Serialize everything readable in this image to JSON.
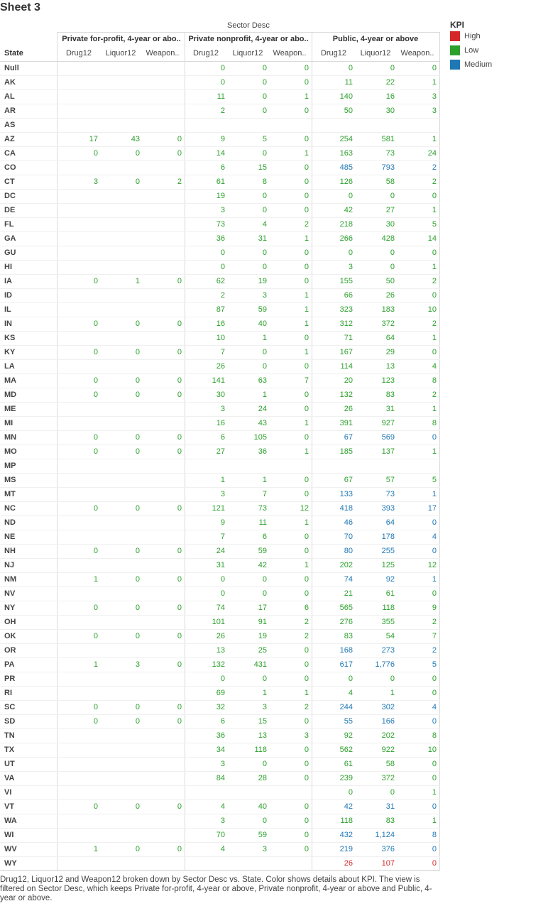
{
  "title": "Sheet 3",
  "sector_desc_label": "Sector Desc",
  "state_label": "State",
  "sectors": [
    "Private for-profit, 4-year or abo..",
    "Private nonprofit, 4-year or abo..",
    "Public, 4-year or above"
  ],
  "measures": [
    "Drug12",
    "Liquor12",
    "Weapon.."
  ],
  "legend": {
    "title": "KPI",
    "items": [
      {
        "label": "High",
        "color": "#d62728"
      },
      {
        "label": "Low",
        "color": "#2ca02c"
      },
      {
        "label": "Medium",
        "color": "#1f77b4"
      }
    ]
  },
  "kpi_colors": {
    "H": "#d62728",
    "L": "#2ca02c",
    "M": "#1f77b4"
  },
  "rows": [
    {
      "state": "Null",
      "s1": null,
      "s2": [
        "0",
        "0",
        "0",
        "L"
      ],
      "s3": [
        "0",
        "0",
        "0",
        "L"
      ]
    },
    {
      "state": "AK",
      "s1": null,
      "s2": [
        "0",
        "0",
        "0",
        "L"
      ],
      "s3": [
        "11",
        "22",
        "1",
        "L"
      ]
    },
    {
      "state": "AL",
      "s1": null,
      "s2": [
        "11",
        "0",
        "1",
        "L"
      ],
      "s3": [
        "140",
        "16",
        "3",
        "L"
      ]
    },
    {
      "state": "AR",
      "s1": null,
      "s2": [
        "2",
        "0",
        "0",
        "L"
      ],
      "s3": [
        "50",
        "30",
        "3",
        "L"
      ]
    },
    {
      "state": "AS",
      "s1": null,
      "s2": null,
      "s3": null
    },
    {
      "state": "AZ",
      "s1": [
        "17",
        "43",
        "0",
        "L"
      ],
      "s2": [
        "9",
        "5",
        "0",
        "L"
      ],
      "s3": [
        "254",
        "581",
        "1",
        "L"
      ]
    },
    {
      "state": "CA",
      "s1": [
        "0",
        "0",
        "0",
        "L"
      ],
      "s2": [
        "14",
        "0",
        "1",
        "L"
      ],
      "s3": [
        "163",
        "73",
        "24",
        "L"
      ]
    },
    {
      "state": "CO",
      "s1": null,
      "s2": [
        "6",
        "15",
        "0",
        "L"
      ],
      "s3": [
        "485",
        "793",
        "2",
        "M"
      ]
    },
    {
      "state": "CT",
      "s1": [
        "3",
        "0",
        "2",
        "L"
      ],
      "s2": [
        "61",
        "8",
        "0",
        "L"
      ],
      "s3": [
        "126",
        "58",
        "2",
        "L"
      ]
    },
    {
      "state": "DC",
      "s1": null,
      "s2": [
        "19",
        "0",
        "0",
        "L"
      ],
      "s3": [
        "0",
        "0",
        "0",
        "L"
      ]
    },
    {
      "state": "DE",
      "s1": null,
      "s2": [
        "3",
        "0",
        "0",
        "L"
      ],
      "s3": [
        "42",
        "27",
        "1",
        "L"
      ]
    },
    {
      "state": "FL",
      "s1": null,
      "s2": [
        "73",
        "4",
        "2",
        "L"
      ],
      "s3": [
        "218",
        "30",
        "5",
        "L"
      ]
    },
    {
      "state": "GA",
      "s1": null,
      "s2": [
        "36",
        "31",
        "1",
        "L"
      ],
      "s3": [
        "266",
        "428",
        "14",
        "L"
      ]
    },
    {
      "state": "GU",
      "s1": null,
      "s2": [
        "0",
        "0",
        "0",
        "L"
      ],
      "s3": [
        "0",
        "0",
        "0",
        "L"
      ]
    },
    {
      "state": "HI",
      "s1": null,
      "s2": [
        "0",
        "0",
        "0",
        "L"
      ],
      "s3": [
        "3",
        "0",
        "1",
        "L"
      ]
    },
    {
      "state": "IA",
      "s1": [
        "0",
        "1",
        "0",
        "L"
      ],
      "s2": [
        "62",
        "19",
        "0",
        "L"
      ],
      "s3": [
        "155",
        "50",
        "2",
        "L"
      ]
    },
    {
      "state": "ID",
      "s1": null,
      "s2": [
        "2",
        "3",
        "1",
        "L"
      ],
      "s3": [
        "66",
        "26",
        "0",
        "L"
      ]
    },
    {
      "state": "IL",
      "s1": null,
      "s2": [
        "87",
        "59",
        "1",
        "L"
      ],
      "s3": [
        "323",
        "183",
        "10",
        "L"
      ]
    },
    {
      "state": "IN",
      "s1": [
        "0",
        "0",
        "0",
        "L"
      ],
      "s2": [
        "16",
        "40",
        "1",
        "L"
      ],
      "s3": [
        "312",
        "372",
        "2",
        "L"
      ]
    },
    {
      "state": "KS",
      "s1": null,
      "s2": [
        "10",
        "1",
        "0",
        "L"
      ],
      "s3": [
        "71",
        "64",
        "1",
        "L"
      ]
    },
    {
      "state": "KY",
      "s1": [
        "0",
        "0",
        "0",
        "L"
      ],
      "s2": [
        "7",
        "0",
        "1",
        "L"
      ],
      "s3": [
        "167",
        "29",
        "0",
        "L"
      ]
    },
    {
      "state": "LA",
      "s1": null,
      "s2": [
        "26",
        "0",
        "0",
        "L"
      ],
      "s3": [
        "114",
        "13",
        "4",
        "L"
      ]
    },
    {
      "state": "MA",
      "s1": [
        "0",
        "0",
        "0",
        "L"
      ],
      "s2": [
        "141",
        "63",
        "7",
        "L"
      ],
      "s3": [
        "20",
        "123",
        "8",
        "L"
      ]
    },
    {
      "state": "MD",
      "s1": [
        "0",
        "0",
        "0",
        "L"
      ],
      "s2": [
        "30",
        "1",
        "0",
        "L"
      ],
      "s3": [
        "132",
        "83",
        "2",
        "L"
      ]
    },
    {
      "state": "ME",
      "s1": null,
      "s2": [
        "3",
        "24",
        "0",
        "L"
      ],
      "s3": [
        "26",
        "31",
        "1",
        "L"
      ]
    },
    {
      "state": "MI",
      "s1": null,
      "s2": [
        "16",
        "43",
        "1",
        "L"
      ],
      "s3": [
        "391",
        "927",
        "8",
        "L"
      ]
    },
    {
      "state": "MN",
      "s1": [
        "0",
        "0",
        "0",
        "L"
      ],
      "s2": [
        "6",
        "105",
        "0",
        "L"
      ],
      "s3": [
        "67",
        "569",
        "0",
        "M"
      ]
    },
    {
      "state": "MO",
      "s1": [
        "0",
        "0",
        "0",
        "L"
      ],
      "s2": [
        "27",
        "36",
        "1",
        "L"
      ],
      "s3": [
        "185",
        "137",
        "1",
        "L"
      ]
    },
    {
      "state": "MP",
      "s1": null,
      "s2": null,
      "s3": null
    },
    {
      "state": "MS",
      "s1": null,
      "s2": [
        "1",
        "1",
        "0",
        "L"
      ],
      "s3": [
        "67",
        "57",
        "5",
        "L"
      ]
    },
    {
      "state": "MT",
      "s1": null,
      "s2": [
        "3",
        "7",
        "0",
        "L"
      ],
      "s3": [
        "133",
        "73",
        "1",
        "M"
      ]
    },
    {
      "state": "NC",
      "s1": [
        "0",
        "0",
        "0",
        "L"
      ],
      "s2": [
        "121",
        "73",
        "12",
        "L"
      ],
      "s3": [
        "418",
        "393",
        "17",
        "M"
      ]
    },
    {
      "state": "ND",
      "s1": null,
      "s2": [
        "9",
        "11",
        "1",
        "L"
      ],
      "s3": [
        "46",
        "64",
        "0",
        "M"
      ]
    },
    {
      "state": "NE",
      "s1": null,
      "s2": [
        "7",
        "6",
        "0",
        "L"
      ],
      "s3": [
        "70",
        "178",
        "4",
        "M"
      ]
    },
    {
      "state": "NH",
      "s1": [
        "0",
        "0",
        "0",
        "L"
      ],
      "s2": [
        "24",
        "59",
        "0",
        "L"
      ],
      "s3": [
        "80",
        "255",
        "0",
        "M"
      ]
    },
    {
      "state": "NJ",
      "s1": null,
      "s2": [
        "31",
        "42",
        "1",
        "L"
      ],
      "s3": [
        "202",
        "125",
        "12",
        "L"
      ]
    },
    {
      "state": "NM",
      "s1": [
        "1",
        "0",
        "0",
        "L"
      ],
      "s2": [
        "0",
        "0",
        "0",
        "L"
      ],
      "s3": [
        "74",
        "92",
        "1",
        "M"
      ]
    },
    {
      "state": "NV",
      "s1": null,
      "s2": [
        "0",
        "0",
        "0",
        "L"
      ],
      "s3": [
        "21",
        "61",
        "0",
        "L"
      ]
    },
    {
      "state": "NY",
      "s1": [
        "0",
        "0",
        "0",
        "L"
      ],
      "s2": [
        "74",
        "17",
        "6",
        "L"
      ],
      "s3": [
        "565",
        "118",
        "9",
        "L"
      ]
    },
    {
      "state": "OH",
      "s1": null,
      "s2": [
        "101",
        "91",
        "2",
        "L"
      ],
      "s3": [
        "276",
        "355",
        "2",
        "L"
      ]
    },
    {
      "state": "OK",
      "s1": [
        "0",
        "0",
        "0",
        "L"
      ],
      "s2": [
        "26",
        "19",
        "2",
        "L"
      ],
      "s3": [
        "83",
        "54",
        "7",
        "L"
      ]
    },
    {
      "state": "OR",
      "s1": null,
      "s2": [
        "13",
        "25",
        "0",
        "L"
      ],
      "s3": [
        "168",
        "273",
        "2",
        "M"
      ]
    },
    {
      "state": "PA",
      "s1": [
        "1",
        "3",
        "0",
        "L"
      ],
      "s2": [
        "132",
        "431",
        "0",
        "L"
      ],
      "s3": [
        "617",
        "1,776",
        "5",
        "M"
      ]
    },
    {
      "state": "PR",
      "s1": null,
      "s2": [
        "0",
        "0",
        "0",
        "L"
      ],
      "s3": [
        "0",
        "0",
        "0",
        "L"
      ]
    },
    {
      "state": "RI",
      "s1": null,
      "s2": [
        "69",
        "1",
        "1",
        "L"
      ],
      "s3": [
        "4",
        "1",
        "0",
        "L"
      ]
    },
    {
      "state": "SC",
      "s1": [
        "0",
        "0",
        "0",
        "L"
      ],
      "s2": [
        "32",
        "3",
        "2",
        "L"
      ],
      "s3": [
        "244",
        "302",
        "4",
        "M"
      ]
    },
    {
      "state": "SD",
      "s1": [
        "0",
        "0",
        "0",
        "L"
      ],
      "s2": [
        "6",
        "15",
        "0",
        "L"
      ],
      "s3": [
        "55",
        "166",
        "0",
        "M"
      ]
    },
    {
      "state": "TN",
      "s1": null,
      "s2": [
        "36",
        "13",
        "3",
        "L"
      ],
      "s3": [
        "92",
        "202",
        "8",
        "L"
      ]
    },
    {
      "state": "TX",
      "s1": null,
      "s2": [
        "34",
        "118",
        "0",
        "L"
      ],
      "s3": [
        "562",
        "922",
        "10",
        "L"
      ]
    },
    {
      "state": "UT",
      "s1": null,
      "s2": [
        "3",
        "0",
        "0",
        "L"
      ],
      "s3": [
        "61",
        "58",
        "0",
        "L"
      ]
    },
    {
      "state": "VA",
      "s1": null,
      "s2": [
        "84",
        "28",
        "0",
        "L"
      ],
      "s3": [
        "239",
        "372",
        "0",
        "L"
      ]
    },
    {
      "state": "VI",
      "s1": null,
      "s2": null,
      "s3": [
        "0",
        "0",
        "1",
        "L"
      ]
    },
    {
      "state": "VT",
      "s1": [
        "0",
        "0",
        "0",
        "L"
      ],
      "s2": [
        "4",
        "40",
        "0",
        "L"
      ],
      "s3": [
        "42",
        "31",
        "0",
        "M"
      ]
    },
    {
      "state": "WA",
      "s1": null,
      "s2": [
        "3",
        "0",
        "0",
        "L"
      ],
      "s3": [
        "118",
        "83",
        "1",
        "L"
      ]
    },
    {
      "state": "WI",
      "s1": null,
      "s2": [
        "70",
        "59",
        "0",
        "L"
      ],
      "s3": [
        "432",
        "1,124",
        "8",
        "M"
      ]
    },
    {
      "state": "WV",
      "s1": [
        "1",
        "0",
        "0",
        "L"
      ],
      "s2": [
        "4",
        "3",
        "0",
        "L"
      ],
      "s3": [
        "219",
        "376",
        "0",
        "M"
      ]
    },
    {
      "state": "WY",
      "s1": null,
      "s2": null,
      "s3": [
        "26",
        "107",
        "0",
        "H"
      ]
    }
  ],
  "caption": "Drug12, Liquor12 and Weapon12 broken down by Sector Desc vs. State.  Color shows details about KPI. The view is filtered on Sector Desc, which keeps Private for-profit, 4-year or above, Private nonprofit, 4-year or above and Public, 4-year or above."
}
